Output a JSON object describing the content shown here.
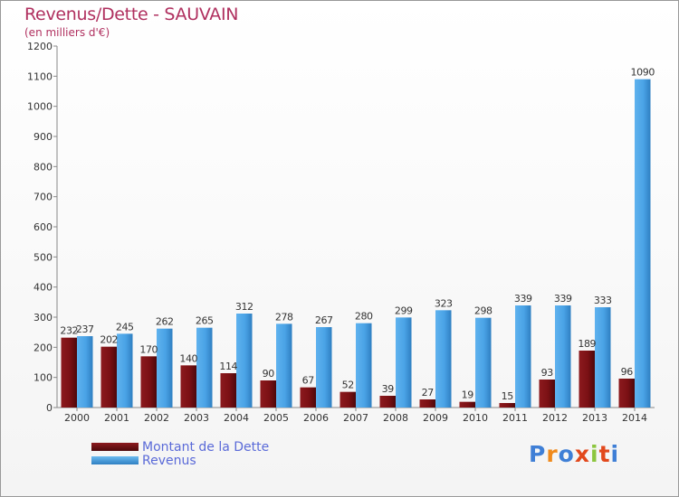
{
  "header": {
    "title": "Revenus/Dette - SAUVAIN",
    "subtitle": "(en milliers d'€)"
  },
  "legend": [
    {
      "label": "Montant de la Dette",
      "color": "#7b1014"
    },
    {
      "label": "Revenus",
      "color": "#4aa3e6"
    }
  ],
  "logo": {
    "text": "Proxiti"
  },
  "chart_data": {
    "type": "bar",
    "title": "Revenus/Dette - SAUVAIN",
    "subtitle": "(en milliers d'€)",
    "xlabel": "",
    "ylabel": "",
    "ylim": [
      0,
      1200
    ],
    "yticks": [
      0,
      100,
      200,
      300,
      400,
      500,
      600,
      700,
      800,
      900,
      1000,
      1100,
      1200
    ],
    "grid": false,
    "legend_position": "bottom-left",
    "categories": [
      "2000",
      "2001",
      "2002",
      "2003",
      "2004",
      "2005",
      "2006",
      "2007",
      "2008",
      "2009",
      "2010",
      "2011",
      "2012",
      "2013",
      "2014"
    ],
    "series": [
      {
        "name": "Montant de la Dette",
        "color": "#7b1014",
        "values": [
          232,
          202,
          170,
          140,
          114,
          90,
          67,
          52,
          39,
          27,
          19,
          15,
          93,
          189,
          96
        ]
      },
      {
        "name": "Revenus",
        "color": "#4aa3e6",
        "values": [
          237,
          245,
          262,
          265,
          312,
          278,
          267,
          280,
          299,
          323,
          298,
          339,
          339,
          333,
          1090
        ]
      }
    ]
  }
}
